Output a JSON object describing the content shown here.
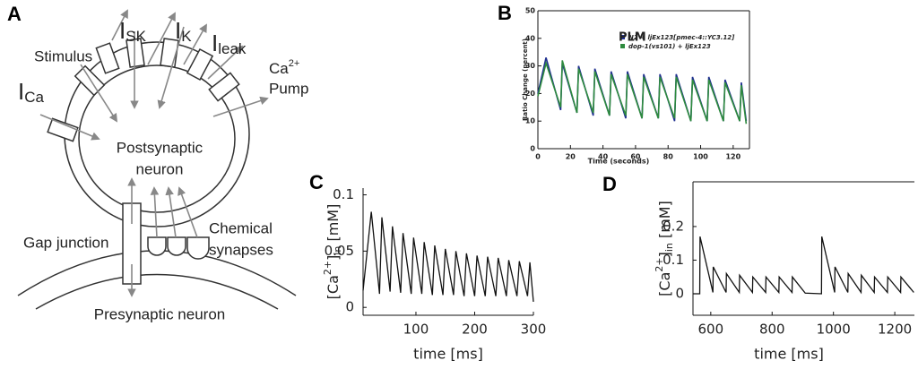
{
  "diagram": {
    "panel_label": "A",
    "stimulus": "Stimulus",
    "currents": [
      {
        "main": "I",
        "sub": "SK"
      },
      {
        "main": "I",
        "sub": "K"
      },
      {
        "main": "I",
        "sub": "leak"
      },
      {
        "main": "I",
        "sub": "Ca"
      }
    ],
    "pump": {
      "main": "Ca",
      "sup": "2+",
      "line2": "Pump"
    },
    "postsynaptic": [
      "Postsynaptic",
      "neuron"
    ],
    "gap_junction": "Gap junction",
    "chemical_synapses": [
      "Chemical",
      "synapses"
    ],
    "presynaptic": "Presynaptic neuron"
  },
  "chart_data": [
    {
      "type": "line",
      "panel_label": "B",
      "title": "PLM",
      "x_label": "Time (seconds)",
      "y_label": [
        "Ratio Change (percent)"
      ],
      "x": [
        0,
        5,
        14,
        15,
        24,
        25,
        34,
        35,
        44,
        45,
        54,
        55,
        64,
        65,
        74,
        75,
        84,
        85,
        94,
        95,
        104,
        105,
        114,
        115,
        124,
        125,
        128
      ],
      "series": [
        {
          "name": "N2 + ljEx123[pmec-4::YC3.12]",
          "color": "#1f2f8f",
          "values": [
            20,
            33,
            14,
            31,
            13,
            30,
            12,
            29,
            12,
            28,
            11,
            28,
            11,
            27,
            11,
            27,
            10,
            27,
            10,
            26,
            10,
            26,
            10,
            25,
            10,
            24,
            10
          ]
        },
        {
          "name": "dop-1(vs101) + ljEx123",
          "color": "#2e8b3e",
          "values": [
            19,
            31,
            15,
            32,
            13,
            29,
            13,
            28,
            12,
            27,
            12,
            27,
            11,
            26,
            11,
            26,
            11,
            26,
            10,
            25,
            10,
            25,
            10,
            24,
            10,
            23,
            9
          ]
        }
      ],
      "xlim": [
        0,
        130
      ],
      "ylim": [
        0,
        50
      ],
      "xticks": [
        0,
        20,
        40,
        60,
        80,
        100,
        120
      ],
      "yticks": [
        0,
        10,
        20,
        30,
        40,
        50
      ],
      "legend": "upper right"
    },
    {
      "type": "line",
      "panel_label": "C",
      "x_label": "time [ms]",
      "y_label": [
        "[Ca",
        "2+",
        "]",
        "in",
        " [mM]"
      ],
      "x": [
        10,
        24,
        38,
        42,
        56,
        60,
        74,
        78,
        92,
        96,
        110,
        114,
        128,
        132,
        146,
        150,
        164,
        168,
        182,
        186,
        200,
        204,
        218,
        222,
        236,
        240,
        254,
        258,
        272,
        276,
        290,
        294,
        300
      ],
      "series": [
        {
          "color": "#111111",
          "values": [
            0.015,
            0.085,
            0.012,
            0.08,
            0.014,
            0.072,
            0.013,
            0.066,
            0.012,
            0.062,
            0.012,
            0.058,
            0.011,
            0.055,
            0.011,
            0.052,
            0.011,
            0.05,
            0.01,
            0.048,
            0.01,
            0.046,
            0.01,
            0.045,
            0.01,
            0.044,
            0.01,
            0.042,
            0.01,
            0.041,
            0.01,
            0.04,
            0.005
          ]
        }
      ],
      "xlim": [
        10,
        300
      ],
      "ylim": [
        -0.007,
        0.106
      ],
      "xticks": [
        100,
        200,
        300
      ],
      "yticks": [
        0,
        0.05,
        0.1
      ]
    },
    {
      "type": "line",
      "panel_label": "D",
      "x_label": "time [ms]",
      "y_label": [
        "[Ca",
        "2+",
        "]",
        "in",
        " [mM]"
      ],
      "x": [
        542,
        564,
        565,
        607,
        608,
        650,
        651,
        693,
        694,
        736,
        737,
        779,
        780,
        822,
        823,
        865,
        866,
        908,
        961,
        962,
        1004,
        1005,
        1047,
        1048,
        1090,
        1091,
        1133,
        1134,
        1176,
        1177,
        1219,
        1220,
        1262
      ],
      "series": [
        {
          "color": "#111111",
          "values": [
            0,
            0,
            0.17,
            0.004,
            0.08,
            0.004,
            0.06,
            0.004,
            0.055,
            0.004,
            0.05,
            0.004,
            0.05,
            0.004,
            0.05,
            0.004,
            0.05,
            0.002,
            0,
            0.17,
            0.004,
            0.08,
            0.004,
            0.06,
            0.004,
            0.055,
            0.004,
            0.05,
            0.004,
            0.05,
            0.004,
            0.05,
            0.004
          ]
        }
      ],
      "xlim": [
        542,
        1264
      ],
      "ylim": [
        -0.064,
        0.333
      ],
      "xticks": [
        600,
        800,
        1000,
        1200
      ],
      "yticks": [
        0,
        0.1,
        0.2
      ]
    }
  ]
}
